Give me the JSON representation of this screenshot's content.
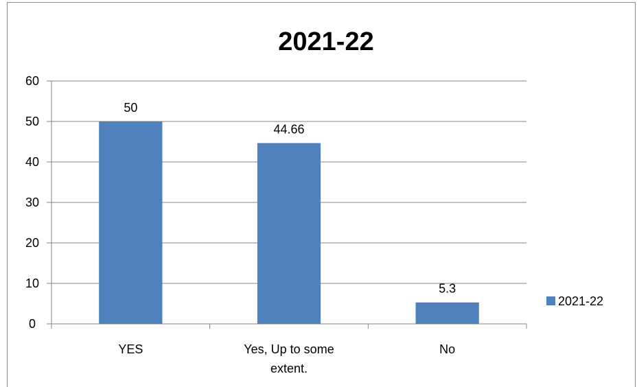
{
  "chart_data": {
    "type": "bar",
    "title": "2021-22",
    "categories": [
      "YES",
      "Yes, Up to some extent.",
      "No"
    ],
    "category_lines": [
      [
        "YES"
      ],
      [
        "Yes, Up to some",
        "extent."
      ],
      [
        "No"
      ]
    ],
    "series": [
      {
        "name": "2021-22",
        "values": [
          50,
          44.66,
          5.3
        ],
        "color": "#4f81bd"
      }
    ],
    "data_labels": [
      "50",
      "44.66",
      "5.3"
    ],
    "ylim": [
      0,
      60
    ],
    "yticks": [
      0,
      10,
      20,
      30,
      40,
      50,
      60
    ],
    "grid": true,
    "legend": "right"
  }
}
